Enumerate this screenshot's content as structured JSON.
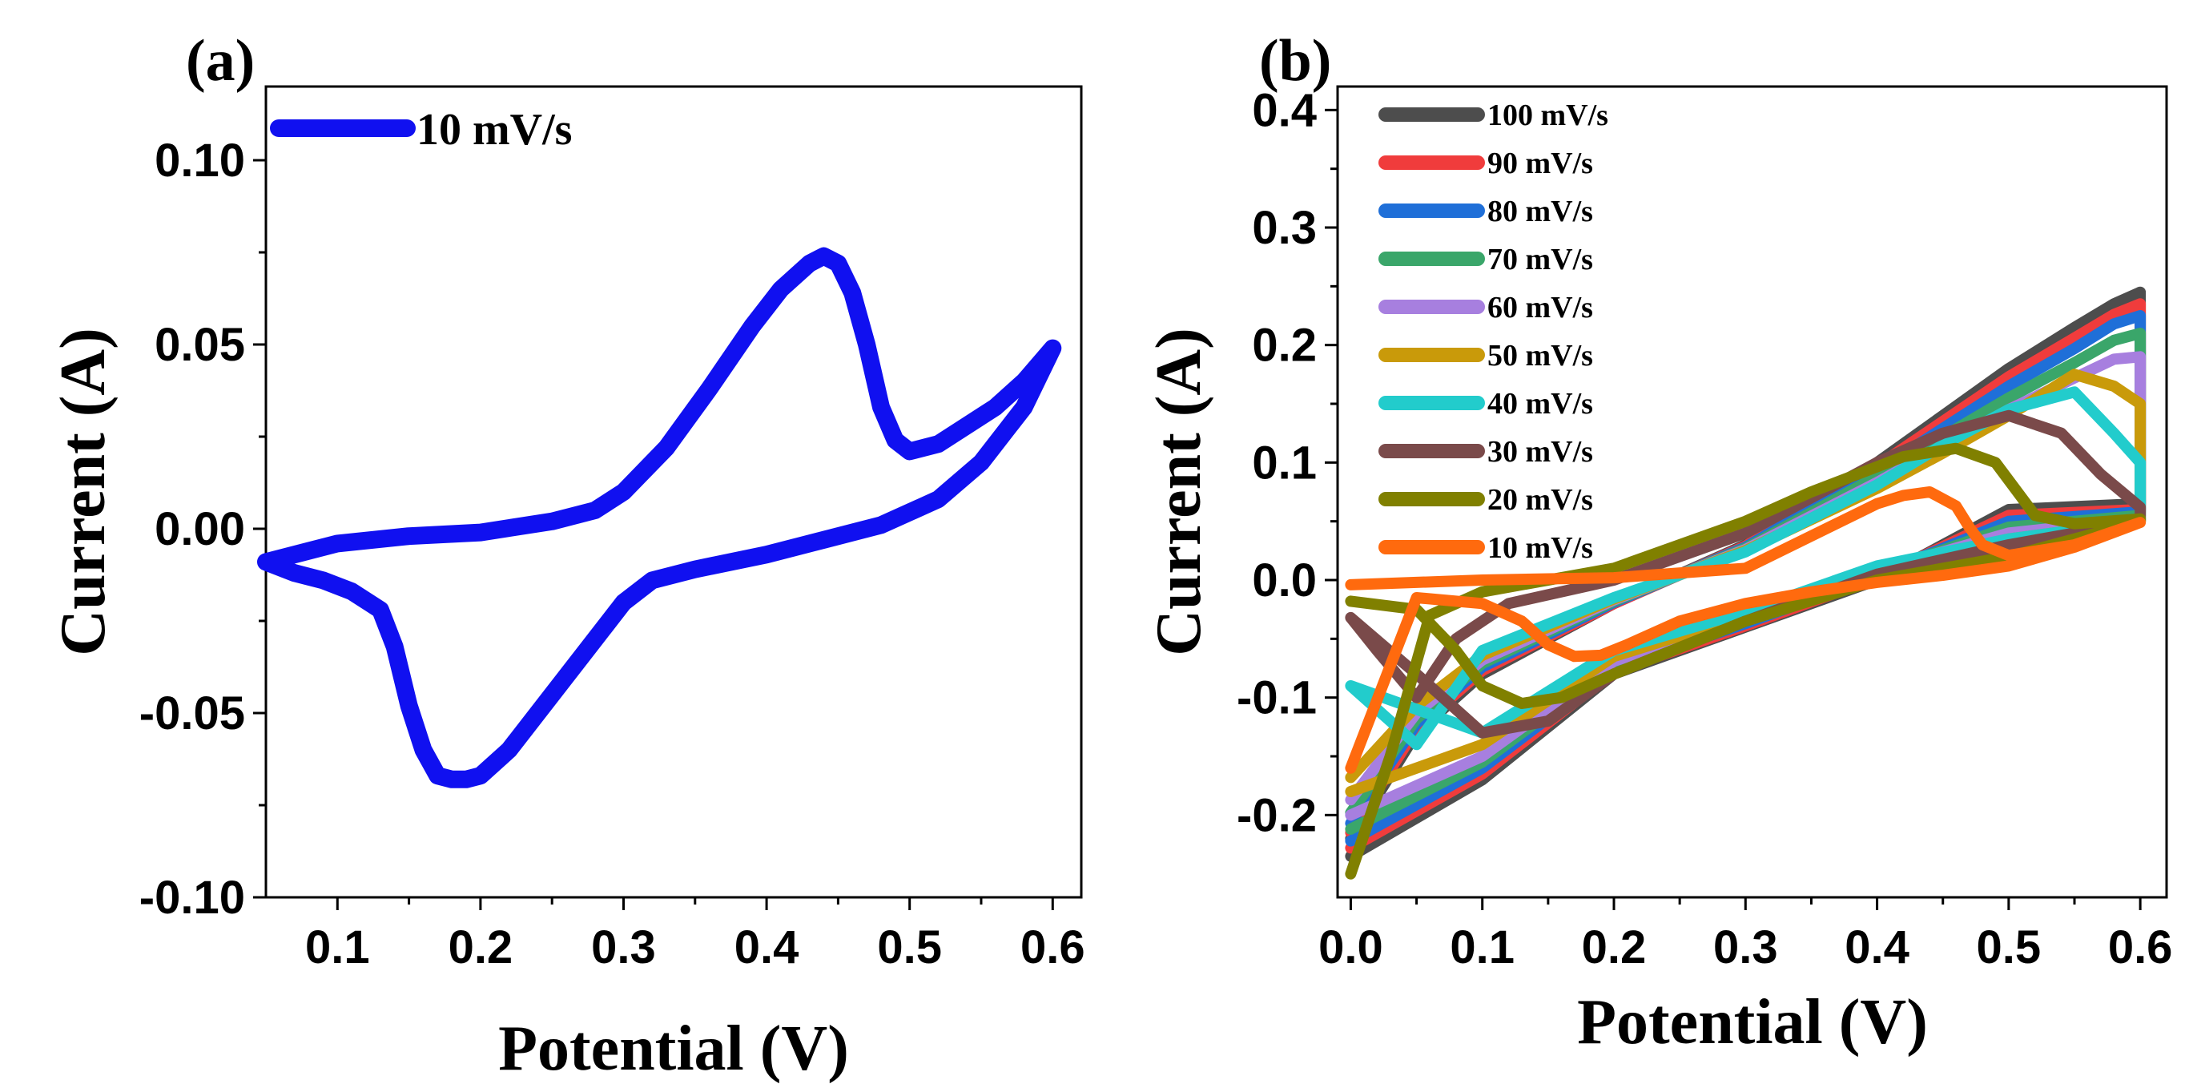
{
  "chart_data": [
    {
      "panel": "(a)",
      "type": "line",
      "title": "",
      "xlabel": "Potential (V)",
      "ylabel": "Current (A)",
      "xlim": [
        0.05,
        0.62
      ],
      "ylim": [
        -0.1,
        0.12
      ],
      "xticks": [
        0.1,
        0.2,
        0.3,
        0.4,
        0.5,
        0.6
      ],
      "xtick_labels": [
        "0.1",
        "0.2",
        "0.3",
        "0.4",
        "0.5",
        "0.6"
      ],
      "yticks": [
        -0.1,
        -0.05,
        0.0,
        0.05,
        0.1
      ],
      "ytick_labels": [
        "-0.10",
        "-0.05",
        "0.00",
        "0.05",
        "0.10"
      ],
      "legend": "top-left",
      "grid": false,
      "series": [
        {
          "name": "10 mV/s",
          "color": "#1010f0",
          "x": [
            0.05,
            0.1,
            0.15,
            0.2,
            0.25,
            0.28,
            0.3,
            0.33,
            0.36,
            0.39,
            0.41,
            0.43,
            0.44,
            0.45,
            0.46,
            0.47,
            0.48,
            0.49,
            0.5,
            0.52,
            0.54,
            0.56,
            0.58,
            0.6,
            0.58,
            0.55,
            0.52,
            0.48,
            0.44,
            0.4,
            0.35,
            0.32,
            0.3,
            0.28,
            0.25,
            0.22,
            0.2,
            0.19,
            0.18,
            0.17,
            0.16,
            0.15,
            0.14,
            0.13,
            0.11,
            0.09,
            0.07,
            0.05
          ],
          "y": [
            -0.009,
            -0.004,
            -0.002,
            -0.001,
            0.002,
            0.005,
            0.01,
            0.022,
            0.038,
            0.055,
            0.065,
            0.072,
            0.074,
            0.072,
            0.064,
            0.05,
            0.033,
            0.024,
            0.021,
            0.023,
            0.028,
            0.033,
            0.04,
            0.049,
            0.033,
            0.018,
            0.008,
            0.001,
            -0.003,
            -0.007,
            -0.011,
            -0.014,
            -0.02,
            -0.03,
            -0.045,
            -0.06,
            -0.067,
            -0.068,
            -0.068,
            -0.067,
            -0.06,
            -0.048,
            -0.032,
            -0.022,
            -0.017,
            -0.014,
            -0.012,
            -0.009
          ]
        }
      ]
    },
    {
      "panel": "(b)",
      "type": "line",
      "title": "",
      "xlabel": "Potential (V)",
      "ylabel": "Current (A)",
      "xlim": [
        -0.01,
        0.62
      ],
      "ylim": [
        -0.27,
        0.42
      ],
      "xticks": [
        0.0,
        0.1,
        0.2,
        0.3,
        0.4,
        0.5,
        0.6
      ],
      "xtick_labels": [
        "0.0",
        "0.1",
        "0.2",
        "0.3",
        "0.4",
        "0.5",
        "0.6"
      ],
      "yticks": [
        -0.2,
        -0.1,
        0.0,
        0.1,
        0.2,
        0.3,
        0.4
      ],
      "ytick_labels": [
        "-0.2",
        "-0.1",
        "0.0",
        "0.1",
        "0.2",
        "0.3",
        "0.4"
      ],
      "legend": "top-left",
      "grid": false,
      "series": [
        {
          "name": "100 mV/s",
          "color": "#4d4d4d",
          "x": [
            0.0,
            0.1,
            0.2,
            0.3,
            0.4,
            0.5,
            0.6,
            0.6,
            0.58,
            0.55,
            0.5,
            0.45,
            0.4,
            0.3,
            0.2,
            0.1,
            0.05,
            0.0
          ],
          "y": [
            -0.235,
            -0.17,
            -0.08,
            -0.04,
            0.0,
            0.06,
            0.065,
            0.245,
            0.235,
            0.215,
            0.18,
            0.14,
            0.1,
            0.03,
            -0.02,
            -0.08,
            -0.13,
            -0.22
          ]
        },
        {
          "name": "90 mV/s",
          "color": "#f03c3c",
          "x": [
            0.0,
            0.1,
            0.2,
            0.3,
            0.4,
            0.5,
            0.6,
            0.6,
            0.58,
            0.55,
            0.5,
            0.45,
            0.4,
            0.3,
            0.2,
            0.1,
            0.05,
            0.0
          ],
          "y": [
            -0.228,
            -0.165,
            -0.078,
            -0.039,
            0.002,
            0.055,
            0.06,
            0.235,
            0.226,
            0.206,
            0.173,
            0.135,
            0.097,
            0.029,
            -0.02,
            -0.077,
            -0.126,
            -0.215
          ]
        },
        {
          "name": "80 mV/s",
          "color": "#1f6fd8",
          "x": [
            0.0,
            0.1,
            0.2,
            0.3,
            0.4,
            0.5,
            0.6,
            0.6,
            0.58,
            0.55,
            0.5,
            0.45,
            0.4,
            0.3,
            0.2,
            0.1,
            0.05,
            0.0
          ],
          "y": [
            -0.222,
            -0.16,
            -0.075,
            -0.037,
            0.004,
            0.05,
            0.058,
            0.225,
            0.218,
            0.197,
            0.165,
            0.129,
            0.093,
            0.028,
            -0.019,
            -0.074,
            -0.122,
            -0.207
          ]
        },
        {
          "name": "70 mV/s",
          "color": "#3aa66a",
          "x": [
            0.0,
            0.1,
            0.2,
            0.3,
            0.4,
            0.5,
            0.6,
            0.6,
            0.58,
            0.55,
            0.5,
            0.45,
            0.4,
            0.3,
            0.2,
            0.1,
            0.05,
            0.0
          ],
          "y": [
            -0.212,
            -0.155,
            -0.072,
            -0.035,
            0.006,
            0.045,
            0.055,
            0.21,
            0.204,
            0.185,
            0.155,
            0.122,
            0.088,
            0.027,
            -0.018,
            -0.071,
            -0.118,
            -0.198
          ]
        },
        {
          "name": "60 mV/s",
          "color": "#a77fdf",
          "x": [
            0.0,
            0.1,
            0.2,
            0.3,
            0.4,
            0.5,
            0.6,
            0.6,
            0.58,
            0.55,
            0.5,
            0.45,
            0.4,
            0.3,
            0.2,
            0.1,
            0.05,
            0.0
          ],
          "y": [
            -0.2,
            -0.15,
            -0.069,
            -0.032,
            0.008,
            0.04,
            0.052,
            0.19,
            0.188,
            0.172,
            0.145,
            0.114,
            0.083,
            0.026,
            -0.017,
            -0.068,
            -0.113,
            -0.187
          ]
        },
        {
          "name": "50 mV/s",
          "color": "#c99a0a",
          "x": [
            0.0,
            0.1,
            0.2,
            0.3,
            0.4,
            0.5,
            0.6,
            0.6,
            0.58,
            0.55,
            0.5,
            0.45,
            0.4,
            0.3,
            0.2,
            0.1,
            0.05,
            0.0
          ],
          "y": [
            -0.18,
            -0.14,
            -0.065,
            -0.03,
            0.01,
            0.035,
            0.05,
            0.15,
            0.165,
            0.175,
            0.14,
            0.108,
            0.078,
            0.025,
            -0.016,
            -0.064,
            -0.107,
            -0.168
          ]
        },
        {
          "name": "40 mV/s",
          "color": "#22cccc",
          "x": [
            0.0,
            0.1,
            0.2,
            0.3,
            0.4,
            0.5,
            0.6,
            0.6,
            0.58,
            0.55,
            0.5,
            0.45,
            0.4,
            0.3,
            0.2,
            0.1,
            0.05,
            0.0
          ],
          "y": [
            -0.09,
            -0.13,
            -0.06,
            -0.027,
            0.012,
            0.035,
            0.05,
            0.1,
            0.125,
            0.16,
            0.145,
            0.115,
            0.081,
            0.024,
            -0.015,
            -0.06,
            -0.14,
            -0.09
          ]
        },
        {
          "name": "30 mV/s",
          "color": "#7a4a4a",
          "x": [
            0.0,
            0.05,
            0.1,
            0.15,
            0.2,
            0.3,
            0.4,
            0.5,
            0.6,
            0.6,
            0.57,
            0.54,
            0.5,
            0.45,
            0.4,
            0.3,
            0.2,
            0.12,
            0.08,
            0.05,
            0.02,
            0.0
          ],
          "y": [
            -0.032,
            -0.08,
            -0.13,
            -0.12,
            -0.08,
            -0.035,
            0.005,
            0.03,
            0.05,
            0.062,
            0.09,
            0.125,
            0.14,
            0.125,
            0.1,
            0.04,
            0.0,
            -0.02,
            -0.05,
            -0.1,
            -0.06,
            -0.032
          ]
        },
        {
          "name": "20 mV/s",
          "color": "#808000",
          "x": [
            0.0,
            0.05,
            0.08,
            0.1,
            0.13,
            0.16,
            0.2,
            0.3,
            0.4,
            0.5,
            0.6,
            0.6,
            0.55,
            0.52,
            0.49,
            0.46,
            0.42,
            0.35,
            0.3,
            0.2,
            0.1,
            0.06,
            0.03,
            0.0
          ],
          "y": [
            -0.018,
            -0.025,
            -0.06,
            -0.09,
            -0.105,
            -0.1,
            -0.08,
            -0.035,
            0.0,
            0.02,
            0.05,
            0.052,
            0.048,
            0.055,
            0.1,
            0.112,
            0.105,
            0.075,
            0.05,
            0.01,
            -0.01,
            -0.03,
            -0.15,
            -0.25
          ]
        },
        {
          "name": "10 mV/s",
          "color": "#ff6a0e",
          "x": [
            0.0,
            0.05,
            0.1,
            0.15,
            0.2,
            0.3,
            0.4,
            0.42,
            0.44,
            0.46,
            0.47,
            0.48,
            0.5,
            0.55,
            0.6,
            0.55,
            0.5,
            0.45,
            0.4,
            0.35,
            0.3,
            0.25,
            0.21,
            0.19,
            0.17,
            0.15,
            0.13,
            0.1,
            0.05,
            0.0
          ],
          "y": [
            -0.004,
            -0.002,
            0.0,
            0.001,
            0.002,
            0.01,
            0.065,
            0.072,
            0.075,
            0.063,
            0.045,
            0.03,
            0.021,
            0.03,
            0.049,
            0.028,
            0.012,
            0.004,
            -0.002,
            -0.01,
            -0.02,
            -0.035,
            -0.055,
            -0.064,
            -0.065,
            -0.055,
            -0.035,
            -0.02,
            -0.015,
            -0.16
          ]
        }
      ]
    }
  ]
}
